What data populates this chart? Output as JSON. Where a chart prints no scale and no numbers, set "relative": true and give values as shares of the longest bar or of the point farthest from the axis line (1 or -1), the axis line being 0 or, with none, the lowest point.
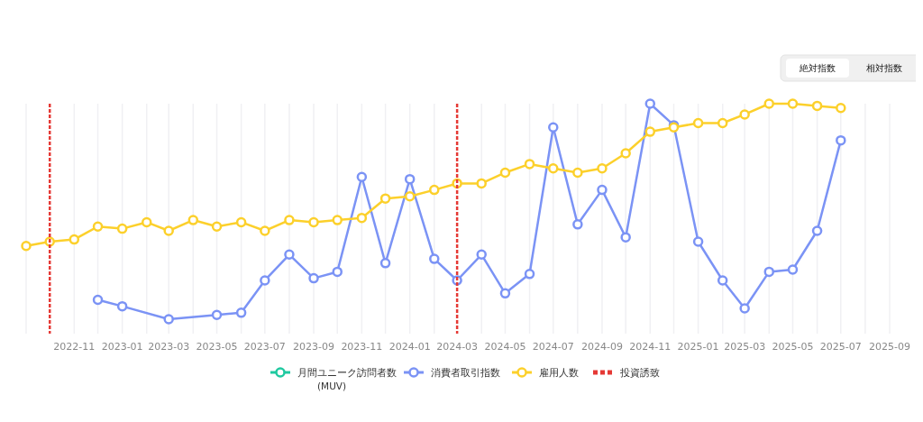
{
  "chart_data": {
    "type": "line",
    "relative": true,
    "marker": "circle",
    "line_style": "solid",
    "grid": "x",
    "legend": "bottom",
    "tick_labels": "x",
    "x": [
      "2022-09",
      "2022-10",
      "2022-11",
      "2022-12",
      "2023-01",
      "2023-02",
      "2023-03",
      "2023-04",
      "2023-05",
      "2023-06",
      "2023-07",
      "2023-08",
      "2023-09",
      "2023-10",
      "2023-11",
      "2023-12",
      "2024-01",
      "2024-02",
      "2024-03",
      "2024-04",
      "2024-05",
      "2024-06",
      "2024-07",
      "2024-08",
      "2024-09",
      "2024-10",
      "2024-11",
      "2024-12",
      "2025-01",
      "2025-02",
      "2025-03",
      "2025-04",
      "2025-05",
      "2025-06",
      "2025-07"
    ],
    "xlim": [
      "2022-09",
      "2025-09"
    ],
    "xticks": [
      {
        "value": "2022-09",
        "label": null
      },
      "2022-11",
      {
        "value": "2022-12",
        "label": null
      },
      "2023-01",
      {
        "value": "2023-02",
        "label": null
      },
      "2023-03",
      {
        "value": "2023-04",
        "label": null
      },
      "2023-05",
      {
        "value": "2023-06",
        "label": null
      },
      "2023-07",
      {
        "value": "2023-08",
        "label": null
      },
      "2023-09",
      {
        "value": "2023-10",
        "label": null
      },
      "2023-11",
      {
        "value": "2023-12",
        "label": null
      },
      "2024-01",
      {
        "value": "2024-02",
        "label": null
      },
      {
        "value": "2024-03",
        "label": "2024-03"
      },
      {
        "value": "2024-04",
        "label": null
      },
      "2024-05",
      {
        "value": "2024-06",
        "label": null
      },
      "2024-07",
      {
        "value": "2024-08",
        "label": null
      },
      "2024-09",
      {
        "value": "2024-10",
        "label": null
      },
      "2024-11",
      {
        "value": "2024-12",
        "label": null
      },
      "2025-01",
      {
        "value": "2025-02",
        "label": null
      },
      "2025-03",
      {
        "value": "2025-04",
        "label": null
      },
      "2025-05",
      {
        "value": "2025-06",
        "label": null
      },
      "2025-07",
      {
        "value": "2025-08",
        "label": null
      },
      "2025-09"
    ],
    "series": [
      {
        "name": "月間ユニーク訪問者数\n(MUV)",
        "color": "#1fc9a0",
        "values": [
          null,
          null,
          null,
          null,
          null,
          null,
          null,
          null,
          null,
          null,
          null,
          null,
          null,
          null,
          null,
          null,
          null,
          null,
          null,
          null,
          null,
          null,
          null,
          null,
          null,
          null,
          null,
          null,
          null,
          null,
          null,
          null,
          null,
          null,
          null
        ]
      },
      {
        "name": "消費者取引指数",
        "color": "#7b93f5",
        "x": [
          "2022-12",
          "2023-01",
          "2023-03",
          "2023-05",
          "2023-06",
          "2023-07",
          "2023-08",
          "2023-09",
          "2023-10",
          "2023-11",
          "2023-12",
          "2024-01",
          "2024-02",
          "2024-03",
          "2024-04",
          "2024-05",
          "2024-06",
          "2024-07",
          "2024-08",
          "2024-09",
          "2024-10",
          "2024-11",
          "2024-12",
          "2025-01",
          "2025-02",
          "2025-03",
          "2025-04",
          "2025-05",
          "2025-06",
          "2025-07"
        ],
        "values": [
          0.09,
          0.06,
          0,
          0.02,
          0.03,
          0.18,
          0.3,
          0.19,
          0.22,
          0.66,
          0.26,
          0.65,
          0.28,
          0.18,
          0.3,
          0.12,
          0.21,
          0.89,
          0.44,
          0.6,
          0.38,
          1.0,
          0.9,
          0.36,
          0.18,
          0.05,
          0.22,
          0.23,
          0.41,
          0.83
        ]
      },
      {
        "name": "雇用人数",
        "color": "#fcd02b",
        "values": [
          0.34,
          0.36,
          0.37,
          0.43,
          0.42,
          0.45,
          0.41,
          0.46,
          0.43,
          0.45,
          0.41,
          0.46,
          0.45,
          0.46,
          0.47,
          0.56,
          0.57,
          0.6,
          0.63,
          0.63,
          0.68,
          0.72,
          0.7,
          0.68,
          0.7,
          0.77,
          0.87,
          0.89,
          0.91,
          0.91,
          0.95,
          1.0,
          1.0,
          0.99,
          0.98
        ]
      }
    ],
    "ref_lines": [
      {
        "axis": "x",
        "value": "2022-10",
        "label": "投資誘致",
        "color": "#e53935",
        "line_style": "dotted"
      },
      {
        "axis": "x",
        "value": "2024-03",
        "color": "#e53935",
        "line_style": "dotted"
      }
    ],
    "annotations": [
      "絶対指数",
      "相対指数"
    ]
  }
}
